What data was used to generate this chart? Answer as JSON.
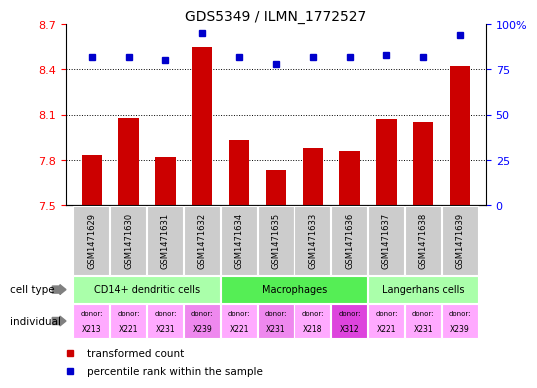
{
  "title": "GDS5349 / ILMN_1772527",
  "samples": [
    "GSM1471629",
    "GSM1471630",
    "GSM1471631",
    "GSM1471632",
    "GSM1471634",
    "GSM1471635",
    "GSM1471633",
    "GSM1471636",
    "GSM1471637",
    "GSM1471638",
    "GSM1471639"
  ],
  "bar_values": [
    7.83,
    8.08,
    7.82,
    8.55,
    7.93,
    7.73,
    7.88,
    7.86,
    8.07,
    8.05,
    8.42
  ],
  "dot_values": [
    82,
    82,
    80,
    95,
    82,
    78,
    82,
    82,
    83,
    82,
    94
  ],
  "ylim": [
    7.5,
    8.7
  ],
  "y2lim": [
    0,
    100
  ],
  "yticks": [
    7.5,
    7.8,
    8.1,
    8.4,
    8.7
  ],
  "y2ticks": [
    0,
    25,
    50,
    75,
    100
  ],
  "bar_color": "#cc0000",
  "dot_color": "#0000cc",
  "cell_types_data": [
    {
      "label": "CD14+ dendritic cells",
      "start": 0,
      "end": 4,
      "color": "#aaffaa"
    },
    {
      "label": "Macrophages",
      "start": 4,
      "end": 8,
      "color": "#55ee55"
    },
    {
      "label": "Langerhans cells",
      "start": 8,
      "end": 11,
      "color": "#aaffaa"
    }
  ],
  "donors": [
    "X213",
    "X221",
    "X231",
    "X239",
    "X221",
    "X231",
    "X218",
    "X312",
    "X221",
    "X231",
    "X239"
  ],
  "donor_colors": [
    "#ffaaff",
    "#ffaaff",
    "#ffaaff",
    "#ee88ee",
    "#ffaaff",
    "#ee88ee",
    "#ffaaff",
    "#dd44dd",
    "#ffaaff",
    "#ffaaff",
    "#ffaaff"
  ],
  "tick_bg": "#cccccc",
  "sample_label_fontsize": 6,
  "axis_fontsize": 8,
  "title_fontsize": 10
}
